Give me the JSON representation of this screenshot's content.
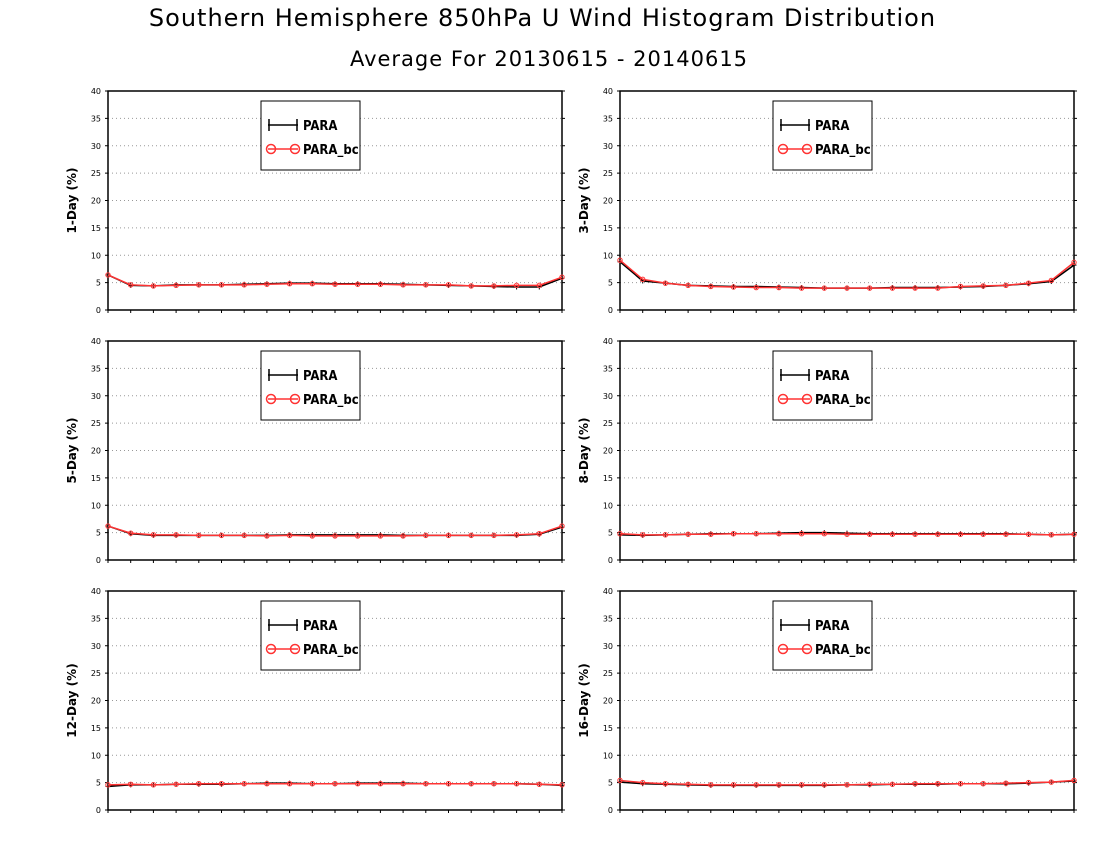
{
  "title": "Southern Hemisphere 850hPa U Wind Histogram Distribution",
  "subtitle": "Average For 20130615 - 20140615",
  "colors": {
    "para": "#000000",
    "para_bc": "#ff3333",
    "grid": "#999999"
  },
  "chart_data": [
    {
      "type": "line",
      "ylabel": "1-Day (%)",
      "ylim": [
        0,
        40
      ],
      "yticks": [
        0,
        5,
        10,
        15,
        20,
        25,
        30,
        35,
        40
      ],
      "grid": "dotted horizontal",
      "legend": "top-center",
      "x": [
        1,
        2,
        3,
        4,
        5,
        6,
        7,
        8,
        9,
        10,
        11,
        12,
        13,
        14,
        15,
        16,
        17,
        18,
        19,
        20,
        21
      ],
      "series": [
        {
          "name": "PARA",
          "values": [
            6.4,
            4.5,
            4.4,
            4.6,
            4.6,
            4.6,
            4.7,
            4.8,
            4.9,
            4.9,
            4.8,
            4.8,
            4.8,
            4.7,
            4.6,
            4.5,
            4.4,
            4.3,
            4.2,
            4.2,
            5.8
          ]
        },
        {
          "name": "PARA_bc",
          "values": [
            6.4,
            4.6,
            4.4,
            4.5,
            4.6,
            4.6,
            4.6,
            4.7,
            4.8,
            4.8,
            4.7,
            4.7,
            4.7,
            4.6,
            4.6,
            4.6,
            4.4,
            4.4,
            4.5,
            4.5,
            6.0
          ]
        }
      ]
    },
    {
      "type": "line",
      "ylabel": "3-Day (%)",
      "ylim": [
        0,
        40
      ],
      "yticks": [
        0,
        5,
        10,
        15,
        20,
        25,
        30,
        35,
        40
      ],
      "grid": "dotted horizontal",
      "legend": "top-center",
      "x": [
        1,
        2,
        3,
        4,
        5,
        6,
        7,
        8,
        9,
        10,
        11,
        12,
        13,
        14,
        15,
        16,
        17,
        18,
        19,
        20,
        21
      ],
      "series": [
        {
          "name": "PARA",
          "values": [
            8.8,
            5.3,
            4.9,
            4.5,
            4.4,
            4.3,
            4.3,
            4.2,
            4.1,
            4.0,
            4.0,
            4.0,
            4.1,
            4.1,
            4.1,
            4.2,
            4.3,
            4.5,
            4.8,
            5.2,
            8.2
          ]
        },
        {
          "name": "PARA_bc",
          "values": [
            9.1,
            5.6,
            4.9,
            4.5,
            4.3,
            4.2,
            4.1,
            4.1,
            4.0,
            4.0,
            4.0,
            4.0,
            4.0,
            4.0,
            4.0,
            4.3,
            4.4,
            4.5,
            4.9,
            5.4,
            8.7
          ]
        }
      ]
    },
    {
      "type": "line",
      "ylabel": "5-Day (%)",
      "ylim": [
        0,
        40
      ],
      "yticks": [
        0,
        5,
        10,
        15,
        20,
        25,
        30,
        35,
        40
      ],
      "grid": "dotted horizontal",
      "legend": "top-center",
      "x": [
        1,
        2,
        3,
        4,
        5,
        6,
        7,
        8,
        9,
        10,
        11,
        12,
        13,
        14,
        15,
        16,
        17,
        18,
        19,
        20,
        21
      ],
      "series": [
        {
          "name": "PARA",
          "values": [
            6.2,
            4.8,
            4.5,
            4.5,
            4.5,
            4.5,
            4.5,
            4.5,
            4.6,
            4.6,
            4.6,
            4.6,
            4.6,
            4.5,
            4.5,
            4.5,
            4.5,
            4.5,
            4.5,
            4.7,
            6.0
          ]
        },
        {
          "name": "PARA_bc",
          "values": [
            6.2,
            4.9,
            4.6,
            4.6,
            4.5,
            4.5,
            4.5,
            4.4,
            4.5,
            4.4,
            4.4,
            4.4,
            4.4,
            4.4,
            4.5,
            4.5,
            4.5,
            4.5,
            4.6,
            4.8,
            6.2
          ]
        }
      ]
    },
    {
      "type": "line",
      "ylabel": "8-Day (%)",
      "ylim": [
        0,
        40
      ],
      "yticks": [
        0,
        5,
        10,
        15,
        20,
        25,
        30,
        35,
        40
      ],
      "grid": "dotted horizontal",
      "legend": "top-center",
      "x": [
        1,
        2,
        3,
        4,
        5,
        6,
        7,
        8,
        9,
        10,
        11,
        12,
        13,
        14,
        15,
        16,
        17,
        18,
        19,
        20,
        21
      ],
      "series": [
        {
          "name": "PARA",
          "values": [
            4.6,
            4.5,
            4.6,
            4.7,
            4.8,
            4.8,
            4.8,
            4.9,
            5.0,
            5.0,
            4.9,
            4.8,
            4.8,
            4.8,
            4.8,
            4.8,
            4.8,
            4.8,
            4.7,
            4.6,
            4.7
          ]
        },
        {
          "name": "PARA_bc",
          "values": [
            4.8,
            4.6,
            4.6,
            4.7,
            4.7,
            4.8,
            4.8,
            4.8,
            4.8,
            4.8,
            4.7,
            4.7,
            4.7,
            4.7,
            4.7,
            4.7,
            4.7,
            4.7,
            4.7,
            4.6,
            4.7
          ]
        }
      ]
    },
    {
      "type": "line",
      "ylabel": "12-Day (%)",
      "ylim": [
        0,
        40
      ],
      "yticks": [
        0,
        5,
        10,
        15,
        20,
        25,
        30,
        35,
        40
      ],
      "grid": "dotted horizontal",
      "legend": "top-center",
      "x": [
        1,
        2,
        3,
        4,
        5,
        6,
        7,
        8,
        9,
        10,
        11,
        12,
        13,
        14,
        15,
        16,
        17,
        18,
        19,
        20,
        21
      ],
      "series": [
        {
          "name": "PARA",
          "values": [
            4.3,
            4.6,
            4.6,
            4.7,
            4.7,
            4.7,
            4.8,
            4.9,
            4.9,
            4.8,
            4.8,
            4.9,
            4.9,
            4.9,
            4.8,
            4.8,
            4.8,
            4.8,
            4.8,
            4.7,
            4.5
          ]
        },
        {
          "name": "PARA_bc",
          "values": [
            4.6,
            4.7,
            4.6,
            4.7,
            4.8,
            4.8,
            4.8,
            4.8,
            4.8,
            4.8,
            4.8,
            4.8,
            4.8,
            4.8,
            4.8,
            4.8,
            4.8,
            4.8,
            4.8,
            4.7,
            4.6
          ]
        }
      ]
    },
    {
      "type": "line",
      "ylabel": "16-Day (%)",
      "ylim": [
        0,
        40
      ],
      "yticks": [
        0,
        5,
        10,
        15,
        20,
        25,
        30,
        35,
        40
      ],
      "grid": "dotted horizontal",
      "legend": "top-center",
      "x": [
        1,
        2,
        3,
        4,
        5,
        6,
        7,
        8,
        9,
        10,
        11,
        12,
        13,
        14,
        15,
        16,
        17,
        18,
        19,
        20,
        21
      ],
      "series": [
        {
          "name": "PARA",
          "values": [
            5.1,
            4.8,
            4.7,
            4.6,
            4.5,
            4.5,
            4.5,
            4.5,
            4.5,
            4.5,
            4.6,
            4.6,
            4.7,
            4.7,
            4.7,
            4.8,
            4.8,
            4.8,
            4.9,
            5.1,
            5.3
          ]
        },
        {
          "name": "PARA_bc",
          "values": [
            5.4,
            5.0,
            4.8,
            4.7,
            4.6,
            4.6,
            4.6,
            4.6,
            4.6,
            4.6,
            4.6,
            4.7,
            4.7,
            4.8,
            4.8,
            4.8,
            4.8,
            4.9,
            5.0,
            5.1,
            5.4
          ]
        }
      ]
    }
  ]
}
